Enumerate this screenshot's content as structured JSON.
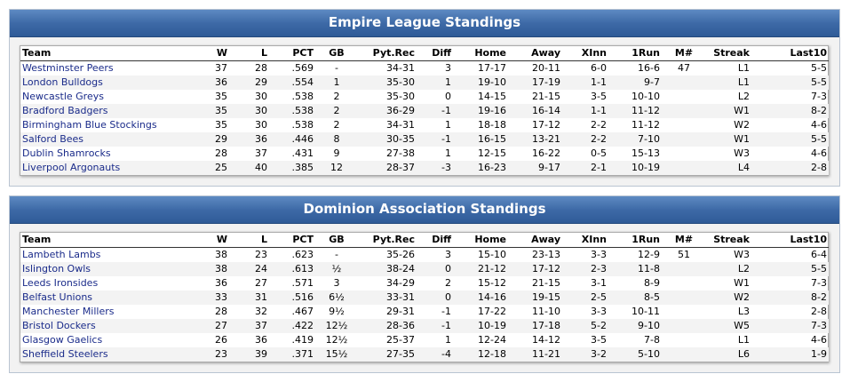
{
  "columns": [
    "Team",
    "W",
    "L",
    "PCT",
    "GB",
    "Pyt.Rec",
    "Diff",
    "Home",
    "Away",
    "XInn",
    "1Run",
    "M#",
    "Streak",
    "Last10"
  ],
  "leagues": [
    {
      "title": "Empire League Standings",
      "rows": [
        [
          "Westminster Peers",
          "37",
          "28",
          ".569",
          "-",
          "34-31",
          "3",
          "17-17",
          "20-11",
          "6-0",
          "16-6",
          "47",
          "L1",
          "5-5"
        ],
        [
          "London Bulldogs",
          "36",
          "29",
          ".554",
          "1",
          "35-30",
          "1",
          "19-10",
          "17-19",
          "1-1",
          "9-7",
          "",
          "L1",
          "5-5"
        ],
        [
          "Newcastle Greys",
          "35",
          "30",
          ".538",
          "2",
          "35-30",
          "0",
          "14-15",
          "21-15",
          "3-5",
          "10-10",
          "",
          "L2",
          "7-3"
        ],
        [
          "Bradford Badgers",
          "35",
          "30",
          ".538",
          "2",
          "36-29",
          "-1",
          "19-16",
          "16-14",
          "1-1",
          "11-12",
          "",
          "W1",
          "8-2"
        ],
        [
          "Birmingham Blue Stockings",
          "35",
          "30",
          ".538",
          "2",
          "34-31",
          "1",
          "18-18",
          "17-12",
          "2-2",
          "11-12",
          "",
          "W2",
          "4-6"
        ],
        [
          "Salford Bees",
          "29",
          "36",
          ".446",
          "8",
          "30-35",
          "-1",
          "16-15",
          "13-21",
          "2-2",
          "7-10",
          "",
          "W1",
          "5-5"
        ],
        [
          "Dublin Shamrocks",
          "28",
          "37",
          ".431",
          "9",
          "27-38",
          "1",
          "12-15",
          "16-22",
          "0-5",
          "15-13",
          "",
          "W3",
          "4-6"
        ],
        [
          "Liverpool Argonauts",
          "25",
          "40",
          ".385",
          "12",
          "28-37",
          "-3",
          "16-23",
          "9-17",
          "2-1",
          "10-19",
          "",
          "L4",
          "2-8"
        ]
      ]
    },
    {
      "title": "Dominion Association Standings",
      "rows": [
        [
          "Lambeth Lambs",
          "38",
          "23",
          ".623",
          "-",
          "35-26",
          "3",
          "15-10",
          "23-13",
          "3-3",
          "12-9",
          "51",
          "W3",
          "6-4"
        ],
        [
          "Islington Owls",
          "38",
          "24",
          ".613",
          "½",
          "38-24",
          "0",
          "21-12",
          "17-12",
          "2-3",
          "11-8",
          "",
          "L2",
          "5-5"
        ],
        [
          "Leeds Ironsides",
          "36",
          "27",
          ".571",
          "3",
          "34-29",
          "2",
          "15-12",
          "21-15",
          "3-1",
          "8-9",
          "",
          "W1",
          "7-3"
        ],
        [
          "Belfast Unions",
          "33",
          "31",
          ".516",
          "6½",
          "33-31",
          "0",
          "14-16",
          "19-15",
          "2-5",
          "8-5",
          "",
          "W2",
          "8-2"
        ],
        [
          "Manchester Millers",
          "28",
          "32",
          ".467",
          "9½",
          "29-31",
          "-1",
          "17-22",
          "11-10",
          "3-3",
          "10-11",
          "",
          "L3",
          "2-8"
        ],
        [
          "Bristol Dockers",
          "27",
          "37",
          ".422",
          "12½",
          "28-36",
          "-1",
          "10-19",
          "17-18",
          "5-2",
          "9-10",
          "",
          "W5",
          "7-3"
        ],
        [
          "Glasgow Gaelics",
          "26",
          "36",
          ".419",
          "12½",
          "25-37",
          "1",
          "12-24",
          "14-12",
          "3-5",
          "7-8",
          "",
          "L1",
          "4-6"
        ],
        [
          "Sheffield Steelers",
          "23",
          "39",
          ".371",
          "15½",
          "27-35",
          "-4",
          "12-18",
          "11-21",
          "3-2",
          "5-10",
          "",
          "L6",
          "1-9"
        ]
      ]
    }
  ]
}
